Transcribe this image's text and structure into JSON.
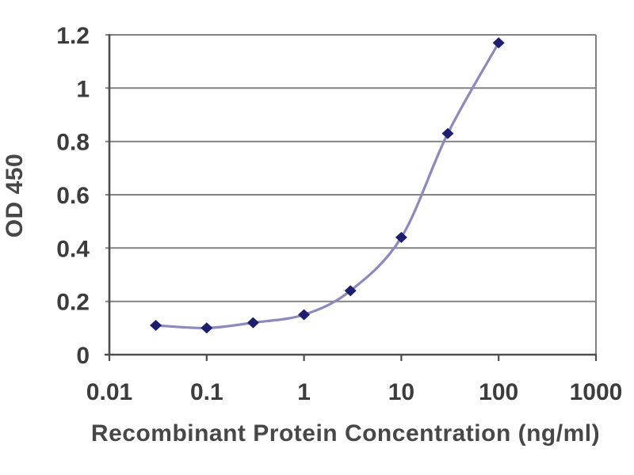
{
  "chart_data": {
    "type": "line",
    "title": "",
    "xlabel": "Recombinant Protein Concentration (ng/ml)",
    "ylabel": "OD 450",
    "x_scale": "log",
    "xlim": [
      0.01,
      1000
    ],
    "ylim": [
      0,
      1.2
    ],
    "x_tick_values": [
      0.01,
      0.1,
      1,
      10,
      100,
      1000
    ],
    "x_tick_labels": [
      "0.01",
      "0.1",
      "1",
      "10",
      "100",
      "1000"
    ],
    "y_tick_values": [
      0,
      0.2,
      0.4,
      0.6,
      0.8,
      1,
      1.2
    ],
    "y_tick_labels": [
      "0",
      "0.2",
      "0.4",
      "0.6",
      "0.8",
      "1",
      "1.2"
    ],
    "grid": "horizontal-only",
    "legend": "none",
    "series": [
      {
        "name": "OD 450",
        "marker": "diamond",
        "smoothed": true,
        "x": [
          0.03,
          0.1,
          0.3,
          1,
          3,
          10,
          30,
          100
        ],
        "y": [
          0.11,
          0.1,
          0.12,
          0.15,
          0.24,
          0.44,
          0.83,
          1.17
        ]
      }
    ],
    "colors": {
      "line": "#8a8abc",
      "marker": "#1e1e6e",
      "grid": "#828282",
      "axis": "#4d4d4d",
      "tick_text": "#3c3c3c",
      "title_text": "#474747",
      "background": "#ffffff"
    }
  }
}
